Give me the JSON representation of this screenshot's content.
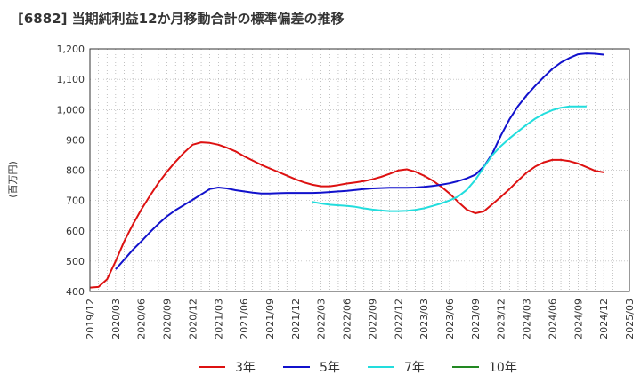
{
  "chart_data": {
    "type": "line",
    "title": "[6882]  当期純利益12か月移動合計の標準偏差の推移",
    "ylabel": "(百万円)",
    "xlabel": "",
    "ylim": [
      400,
      1200
    ],
    "yticks": [
      400,
      500,
      600,
      700,
      800,
      900,
      1000,
      1100,
      1200
    ],
    "ytick_labels": [
      "400",
      "500",
      "600",
      "700",
      "800",
      "900",
      "1,000",
      "1,100",
      "1,200"
    ],
    "xticks": [
      "2019/12",
      "2020/03",
      "2020/06",
      "2020/09",
      "2020/12",
      "2021/03",
      "2021/06",
      "2021/09",
      "2021/12",
      "2022/03",
      "2022/06",
      "2022/09",
      "2022/12",
      "2023/03",
      "2023/06",
      "2023/09",
      "2023/12",
      "2024/03",
      "2024/06",
      "2024/09",
      "2024/12",
      "2025/03"
    ],
    "grid": true,
    "legend_position": "bottom",
    "series": [
      {
        "name": "3年",
        "color": "#dd1111",
        "start_index": 0,
        "values": [
          413,
          415,
          440,
          500,
          565,
          620,
          670,
          715,
          758,
          795,
          828,
          858,
          884,
          892,
          890,
          884,
          874,
          862,
          846,
          832,
          818,
          806,
          794,
          782,
          770,
          760,
          752,
          747,
          747,
          751,
          756,
          760,
          764,
          770,
          778,
          788,
          799,
          803,
          795,
          782,
          766,
          746,
          723,
          695,
          670,
          658,
          664,
          688,
          712,
          738,
          766,
          792,
          812,
          826,
          834,
          834,
          830,
          822,
          810,
          798,
          793
        ]
      },
      {
        "name": "5年",
        "color": "#1111cc",
        "start_index": 3,
        "values": [
          473,
          505,
          537,
          565,
          595,
          623,
          648,
          668,
          685,
          702,
          720,
          738,
          743,
          740,
          734,
          730,
          726,
          723,
          723,
          724,
          725,
          725,
          725,
          725,
          726,
          728,
          730,
          732,
          735,
          738,
          740,
          741,
          742,
          742,
          742,
          743,
          745,
          748,
          752,
          757,
          764,
          773,
          785,
          812,
          855,
          915,
          968,
          1012,
          1047,
          1078,
          1107,
          1134,
          1155,
          1170,
          1182,
          1185,
          1184,
          1181
        ]
      },
      {
        "name": "7年",
        "color": "#22dddd",
        "start_index": 26,
        "values": [
          695,
          690,
          686,
          684,
          682,
          679,
          674,
          670,
          667,
          665,
          665,
          666,
          669,
          674,
          682,
          690,
          700,
          713,
          735,
          768,
          810,
          850,
          880,
          905,
          928,
          950,
          970,
          986,
          998,
          1006,
          1010,
          1010,
          1010
        ]
      },
      {
        "name": "10年",
        "color": "#228822",
        "start_index": 0,
        "values": []
      }
    ]
  }
}
